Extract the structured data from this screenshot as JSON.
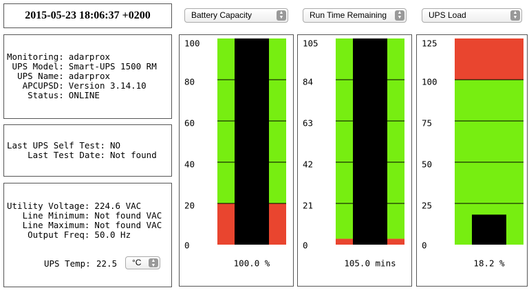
{
  "timestamp": "2015-05-23 18:06:37 +0200",
  "info": [
    {
      "label": "Monitoring:",
      "value": "adarprox"
    },
    {
      "label": "UPS Model:",
      "value": "Smart-UPS 1500 RM"
    },
    {
      "label": "UPS Name:",
      "value": "adarprox"
    },
    {
      "label": "APCUPSD:",
      "value": "Version 3.14.10"
    },
    {
      "label": "Status:",
      "value": "ONLINE"
    }
  ],
  "selftest": [
    {
      "label": "Last UPS Self Test:",
      "value": "NO"
    },
    {
      "label": "Last Test Date:",
      "value": "Not found"
    }
  ],
  "voltage": [
    {
      "label": "Utility Voltage:",
      "value": "224.6 VAC"
    },
    {
      "label": "Line Minimum:",
      "value": "Not found VAC"
    },
    {
      "label": "Line Maximum:",
      "value": "Not found VAC"
    },
    {
      "label": "Output Freq:",
      "value": "50.0 Hz"
    }
  ],
  "temp": {
    "label": "UPS Temp:",
    "value": "22.5",
    "unit": "°C"
  },
  "gauges": [
    {
      "select": "Battery Capacity",
      "value": 100,
      "value_label": "100.0 %",
      "ylim": [
        0,
        100
      ],
      "yticks": [
        0,
        20,
        40,
        60,
        80,
        100
      ],
      "zones": [
        {
          "from": 0,
          "to": 20,
          "color": "#e9452f"
        },
        {
          "from": 20,
          "to": 100,
          "color": "#77ee11"
        }
      ],
      "bar_color": "#000000"
    },
    {
      "select": "Run Time Remaining",
      "value": 105,
      "value_label": "105.0 mins",
      "ylim": [
        0,
        105
      ],
      "yticks": [
        0,
        21,
        42,
        63,
        84,
        105
      ],
      "zones": [
        {
          "from": 0,
          "to": 3,
          "color": "#e9452f"
        },
        {
          "from": 3,
          "to": 105,
          "color": "#77ee11"
        }
      ],
      "bar_color": "#000000"
    },
    {
      "select": "UPS Load",
      "value": 18.2,
      "value_label": "18.2 %",
      "ylim": [
        0,
        125
      ],
      "yticks": [
        0,
        25,
        50,
        75,
        100,
        125
      ],
      "zones": [
        {
          "from": 0,
          "to": 100,
          "color": "#77ee11"
        },
        {
          "from": 100,
          "to": 125,
          "color": "#e9452f"
        }
      ],
      "bar_color": "#000000"
    }
  ]
}
